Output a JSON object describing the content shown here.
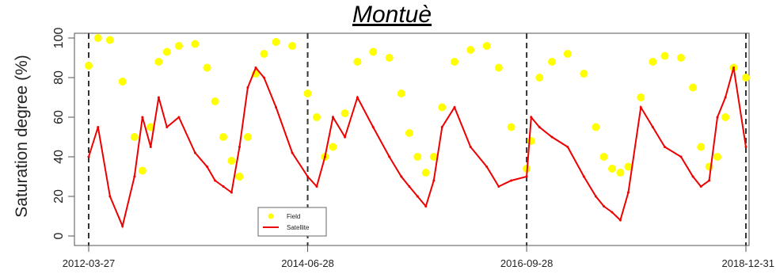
{
  "chart_data": {
    "type": "line",
    "title": "Montuè",
    "ylabel": "Saturation degree (%)",
    "xlabel": "",
    "ylim": [
      0,
      100
    ],
    "yticks": [
      0,
      20,
      40,
      60,
      80,
      100
    ],
    "xrange": [
      "2012-03-27",
      "2018-12-31"
    ],
    "xtick_labels": [
      "2012-03-27",
      "2014-06-28",
      "2016-09-28",
      "2018-12-31"
    ],
    "vlines": [
      "2012-03-27",
      "2014-06-28",
      "2016-09-28",
      "2018-12-31"
    ],
    "legend_position": "bottom-center",
    "series": [
      {
        "name": "Field",
        "color": "#ffff00",
        "style": "points",
        "x": [
          "2012-03-27",
          "2012-05-01",
          "2012-06-15",
          "2012-08-01",
          "2012-09-15",
          "2012-10-15",
          "2012-11-15",
          "2012-12-15",
          "2013-01-15",
          "2013-03-01",
          "2013-05-01",
          "2013-06-15",
          "2013-07-15",
          "2013-08-15",
          "2013-09-15",
          "2013-10-15",
          "2013-11-15",
          "2013-12-15",
          "2014-01-15",
          "2014-03-01",
          "2014-05-01",
          "2014-06-28",
          "2014-08-01",
          "2014-09-01",
          "2014-10-01",
          "2014-11-15",
          "2015-01-01",
          "2015-03-01",
          "2015-05-01",
          "2015-06-15",
          "2015-07-15",
          "2015-08-15",
          "2015-09-15",
          "2015-10-15",
          "2015-11-15",
          "2016-01-01",
          "2016-03-01",
          "2016-05-01",
          "2016-06-15",
          "2016-08-01",
          "2016-09-28",
          "2016-10-15",
          "2016-11-15",
          "2017-01-01",
          "2017-03-01",
          "2017-05-01",
          "2017-06-15",
          "2017-07-15",
          "2017-08-15",
          "2017-09-15",
          "2017-10-15",
          "2017-12-01",
          "2018-01-15",
          "2018-03-01",
          "2018-05-01",
          "2018-06-15",
          "2018-07-15",
          "2018-08-15",
          "2018-09-15",
          "2018-10-15",
          "2018-11-15",
          "2018-12-31"
        ],
        "values": [
          86,
          100,
          99,
          78,
          50,
          33,
          55,
          88,
          93,
          96,
          97,
          85,
          68,
          50,
          38,
          30,
          50,
          82,
          92,
          98,
          96,
          72,
          60,
          40,
          45,
          62,
          88,
          93,
          90,
          72,
          52,
          40,
          32,
          40,
          65,
          88,
          94,
          96,
          85,
          55,
          34,
          48,
          80,
          88,
          92,
          82,
          55,
          40,
          34,
          32,
          35,
          70,
          88,
          91,
          90,
          75,
          45,
          35,
          40,
          60,
          85,
          80
        ]
      },
      {
        "name": "Satellite",
        "color": "#ee0000",
        "style": "line",
        "x": [
          "2012-03-27",
          "2012-05-01",
          "2012-06-15",
          "2012-08-01",
          "2012-09-15",
          "2012-10-15",
          "2012-11-15",
          "2012-12-15",
          "2013-01-15",
          "2013-03-01",
          "2013-05-01",
          "2013-06-15",
          "2013-07-15",
          "2013-08-15",
          "2013-09-15",
          "2013-10-15",
          "2013-11-15",
          "2013-12-15",
          "2014-01-15",
          "2014-03-01",
          "2014-05-01",
          "2014-06-28",
          "2014-08-01",
          "2014-09-01",
          "2014-10-01",
          "2014-11-15",
          "2015-01-01",
          "2015-03-01",
          "2015-05-01",
          "2015-06-15",
          "2015-07-15",
          "2015-08-15",
          "2015-09-15",
          "2015-10-15",
          "2015-11-15",
          "2016-01-01",
          "2016-03-01",
          "2016-05-01",
          "2016-06-15",
          "2016-08-01",
          "2016-09-28",
          "2016-10-15",
          "2016-11-15",
          "2017-01-01",
          "2017-03-01",
          "2017-05-01",
          "2017-06-15",
          "2017-07-15",
          "2017-08-15",
          "2017-09-15",
          "2017-10-15",
          "2017-12-01",
          "2018-01-15",
          "2018-03-01",
          "2018-05-01",
          "2018-06-15",
          "2018-07-15",
          "2018-08-15",
          "2018-09-15",
          "2018-10-15",
          "2018-11-15",
          "2018-12-31"
        ],
        "values": [
          40,
          55,
          20,
          5,
          30,
          60,
          45,
          70,
          55,
          60,
          42,
          35,
          28,
          25,
          22,
          45,
          75,
          85,
          80,
          65,
          42,
          30,
          25,
          40,
          60,
          50,
          70,
          55,
          40,
          30,
          25,
          20,
          15,
          28,
          55,
          65,
          45,
          35,
          25,
          28,
          30,
          60,
          55,
          50,
          45,
          30,
          20,
          15,
          12,
          8,
          22,
          65,
          55,
          45,
          40,
          30,
          25,
          28,
          60,
          70,
          85,
          45
        ]
      }
    ]
  }
}
